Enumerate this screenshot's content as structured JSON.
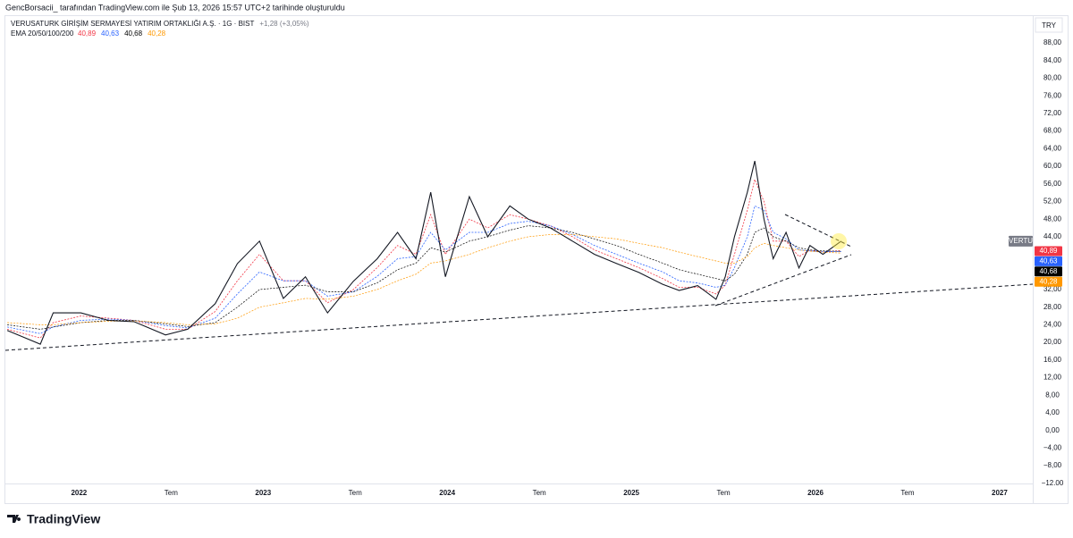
{
  "header": {
    "attribution": "GencBorsacii_ tarafından TradingView.com ile Şub 13, 2026 15:57 UTC+2 tarihinde oluşturuldu"
  },
  "footer": {
    "brand": "TradingView"
  },
  "chart_data": {
    "type": "line",
    "title": "VERUSATURK GİRİŞİM SERMAYESİ YATIRIM ORTAKLIĞI A.Ş. · 1G · BIST",
    "change": "+1,28 (+3,05%)",
    "ema_label": "EMA 20/50/100/200",
    "currency": "TRY",
    "x": [
      2021.61,
      2021.79,
      2021.86,
      2022.01,
      2022.16,
      2022.3,
      2022.47,
      2022.59,
      2022.74,
      2022.86,
      2022.98,
      2023.11,
      2023.23,
      2023.35,
      2023.49,
      2023.62,
      2023.73,
      2023.83,
      2023.91,
      2023.99,
      2024.12,
      2024.22,
      2024.34,
      2024.44,
      2024.56,
      2024.68,
      2024.8,
      2024.92,
      2025.04,
      2025.17,
      2025.26,
      2025.36,
      2025.46,
      2025.51,
      2025.56,
      2025.63,
      2025.67,
      2025.72,
      2025.77,
      2025.84,
      2025.91,
      2025.97,
      2026.04,
      2026.14
    ],
    "series": [
      {
        "name": "VERTU",
        "color": "#131722",
        "width": 1.1,
        "values": [
          22.7,
          19.6,
          26.7,
          26.7,
          25,
          24.7,
          21.7,
          23,
          28.8,
          37.9,
          43,
          30,
          34.9,
          26.7,
          33.9,
          39,
          45,
          39,
          54.1,
          34.9,
          53.1,
          44,
          51,
          48,
          46,
          43,
          40,
          37.9,
          35.9,
          33.2,
          31.8,
          32.9,
          29.8,
          34.9,
          44,
          54.1,
          61.2,
          48,
          39,
          45,
          36.9,
          42,
          40,
          43
        ]
      },
      {
        "label": "40,89",
        "color": "#f23645",
        "width": 0.8,
        "values": [
          23,
          21,
          24.5,
          26,
          25.5,
          25,
          23,
          23,
          27,
          34,
          40,
          34,
          34,
          29,
          32,
          37,
          42,
          40,
          49,
          40,
          48,
          46,
          49,
          48,
          46.5,
          44,
          41,
          39,
          37,
          34.5,
          32.5,
          32.5,
          31,
          33,
          40,
          50,
          57,
          52,
          43,
          43,
          39.5,
          41,
          40.5,
          40.89
        ]
      },
      {
        "label": "40,63",
        "color": "#2962ff",
        "width": 0.8,
        "values": [
          23.5,
          22,
          23.5,
          25,
          25.3,
          25,
          23.8,
          23.3,
          25.5,
          31,
          36,
          34,
          34,
          30.5,
          31.5,
          35,
          39,
          39.5,
          45,
          41,
          45,
          45,
          47,
          47.5,
          46.5,
          44.5,
          42,
          40,
          38,
          36,
          34,
          33.5,
          32.5,
          33,
          37,
          44,
          51,
          50,
          45,
          43.5,
          41,
          40.8,
          40.6,
          40.63
        ]
      },
      {
        "label": "40,68",
        "color": "#000000",
        "width": 0.7,
        "values": [
          24,
          23,
          23.5,
          24.5,
          25,
          25,
          24.2,
          23.6,
          24.5,
          28,
          32,
          32.5,
          33,
          31.5,
          31.5,
          33.5,
          36.5,
          38,
          41.5,
          40.5,
          43,
          44,
          45.5,
          46.5,
          46,
          45,
          43.5,
          42,
          40,
          38,
          36.5,
          35.5,
          34.5,
          34,
          35.5,
          40,
          45,
          46,
          44,
          43,
          41.5,
          41,
          40.8,
          40.68
        ]
      },
      {
        "label": "40,28",
        "color": "#ff9800",
        "width": 0.7,
        "values": [
          24.5,
          24,
          24,
          24.5,
          24.8,
          24.9,
          24.5,
          24,
          24.2,
          25.5,
          28,
          29,
          30,
          29.8,
          30.5,
          32,
          34,
          35.5,
          38,
          38.5,
          40,
          41.5,
          43,
          44,
          44.5,
          44.5,
          44,
          43.5,
          42.5,
          41.5,
          40.5,
          39.5,
          38.5,
          38,
          38,
          39.5,
          41.5,
          42.5,
          42,
          41.5,
          41,
          40.7,
          40.5,
          40.28
        ]
      }
    ],
    "xlim": [
      2021.6,
      2027.18
    ],
    "xticks": [
      2022,
      {
        "value": 2022.5,
        "label": "Tem"
      },
      2023,
      {
        "value": 2023.5,
        "label": "Tem"
      },
      2024,
      {
        "value": 2024.5,
        "label": "Tem"
      },
      2025,
      {
        "value": 2025.5,
        "label": "Tem"
      },
      2026,
      {
        "value": 2026.5,
        "label": "Tem"
      },
      2027
    ],
    "ylim": [
      -16.3,
      93.7
    ],
    "yticks": [
      {
        "value": 88,
        "label": "88,00"
      },
      {
        "value": 84,
        "label": "84,00"
      },
      {
        "value": 80,
        "label": "80,00"
      },
      {
        "value": 76,
        "label": "76,00"
      },
      {
        "value": 72,
        "label": "72,00"
      },
      {
        "value": 68,
        "label": "68,00"
      },
      {
        "value": 64,
        "label": "64,00"
      },
      {
        "value": 60,
        "label": "60,00"
      },
      {
        "value": 56,
        "label": "56,00"
      },
      {
        "value": 52,
        "label": "52,00"
      },
      {
        "value": 48,
        "label": "48,00"
      },
      {
        "value": 44,
        "label": "44,00"
      },
      {
        "value": 36,
        "label": "36,00"
      },
      {
        "value": 32,
        "label": "32,00"
      },
      {
        "value": 28,
        "label": "28,00"
      },
      {
        "value": 24,
        "label": "24,00"
      },
      {
        "value": 20,
        "label": "20,00"
      },
      {
        "value": 16,
        "label": "16,00"
      },
      {
        "value": 12,
        "label": "12,00"
      },
      {
        "value": 8,
        "label": "8,00"
      },
      {
        "value": 4,
        "label": "4,00"
      },
      {
        "value": 0,
        "label": "0,00"
      },
      {
        "value": -4,
        "label": "−4,00"
      },
      {
        "value": -8,
        "label": "−8,00"
      },
      {
        "value": -12,
        "label": "−12.00"
      }
    ],
    "grid": false
  }
}
